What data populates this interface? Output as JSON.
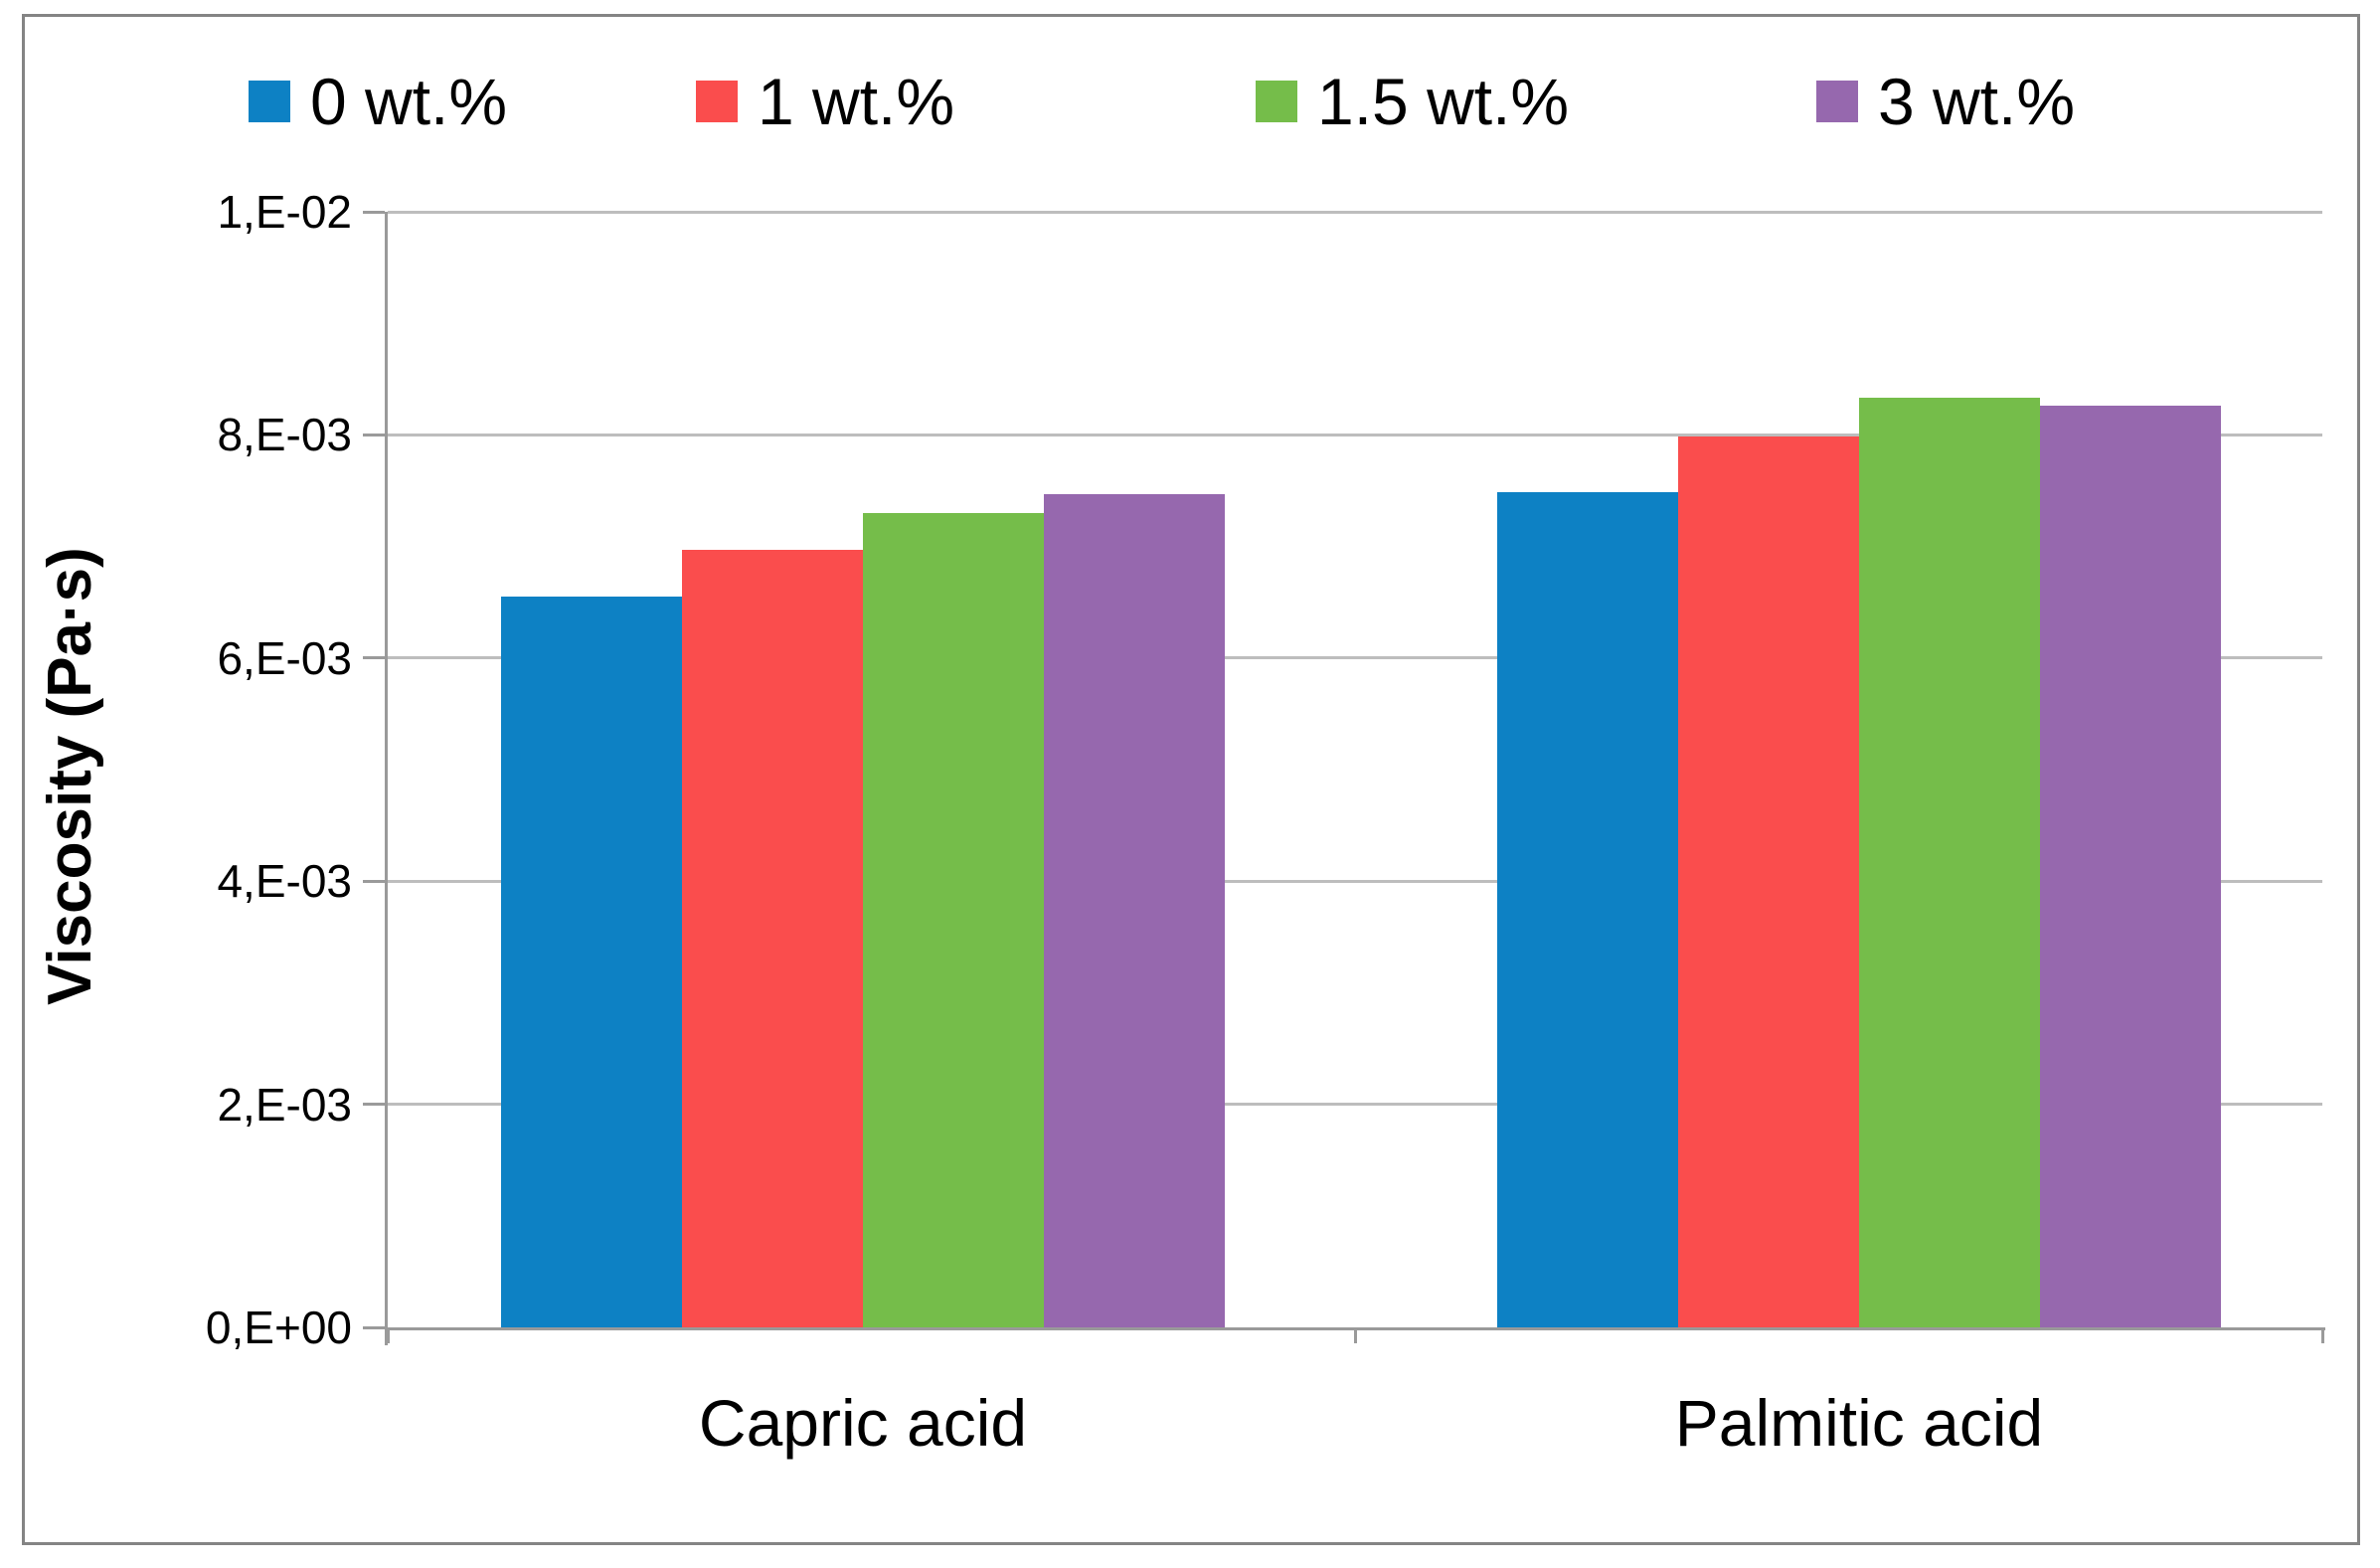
{
  "chart_data": {
    "type": "bar",
    "title": "",
    "xlabel": "",
    "ylabel": "Viscosity (Pa·s)",
    "categories": [
      "Capric acid",
      "Palmitic acid"
    ],
    "series": [
      {
        "name": "0 wt.%",
        "color": "#0d81c4",
        "values": [
          0.00655,
          0.00749
        ]
      },
      {
        "name": "1 wt.%",
        "color": "#fa4d4d",
        "values": [
          0.00697,
          0.00799
        ]
      },
      {
        "name": "1.5 wt.%",
        "color": "#75bd4a",
        "values": [
          0.0073,
          0.00833
        ]
      },
      {
        "name": "3 wt.%",
        "color": "#9668ae",
        "values": [
          0.00747,
          0.00826
        ]
      }
    ],
    "y_ticks": [
      {
        "value": 0.0,
        "label": "0,E+00"
      },
      {
        "value": 0.002,
        "label": "2,E-03"
      },
      {
        "value": 0.004,
        "label": "4,E-03"
      },
      {
        "value": 0.006,
        "label": "6,E-03"
      },
      {
        "value": 0.008,
        "label": "8,E-03"
      },
      {
        "value": 0.01,
        "label": "1,E-02"
      }
    ],
    "ylim": [
      0,
      0.01
    ],
    "grid": true,
    "legend_position": "top"
  },
  "style_colors": {
    "gridline": "#bdbdbd",
    "axis": "#9a9a9a",
    "frame_border": "#848484",
    "text": "#000000"
  }
}
